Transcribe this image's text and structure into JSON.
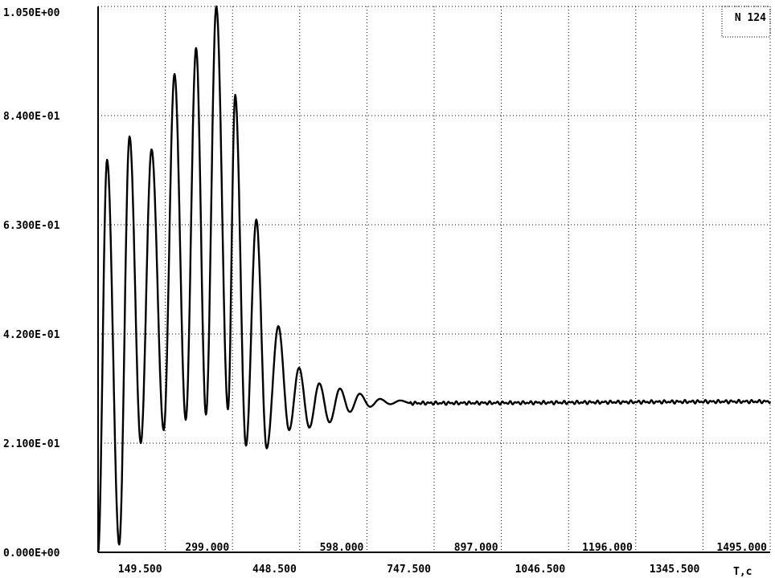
{
  "chart_data": {
    "type": "line",
    "title": "",
    "xlabel": "T,c",
    "ylabel": "",
    "badge": "N 124",
    "xlim": [
      0,
      1495
    ],
    "ylim": [
      0,
      1.05
    ],
    "grid": true,
    "y_ticks": [
      {
        "value": 0.0,
        "label": "0.000E+00"
      },
      {
        "value": 0.21,
        "label": "2.100E-01"
      },
      {
        "value": 0.42,
        "label": "4.200E-01"
      },
      {
        "value": 0.63,
        "label": "6.300E-01"
      },
      {
        "value": 0.84,
        "label": "8.400E-01"
      },
      {
        "value": 1.05,
        "label": "1.050E+00"
      }
    ],
    "x_ticks_upper": [
      {
        "value": 299.0,
        "label": "299.000"
      },
      {
        "value": 598.0,
        "label": "598.000"
      },
      {
        "value": 897.0,
        "label": "897.000"
      },
      {
        "value": 1196.0,
        "label": "1196.000"
      },
      {
        "value": 1495.0,
        "label": "1495.000"
      }
    ],
    "x_ticks_lower": [
      {
        "value": 149.5,
        "label": "149.500"
      },
      {
        "value": 448.5,
        "label": "448.500"
      },
      {
        "value": 747.5,
        "label": "747.500"
      },
      {
        "value": 1046.5,
        "label": "1046.500"
      },
      {
        "value": 1345.5,
        "label": "1345.500"
      }
    ],
    "series": [
      {
        "peaks": [
          [
            0,
            0.0
          ],
          [
            20,
            0.755
          ],
          [
            47,
            0.015
          ],
          [
            70,
            0.8
          ],
          [
            95,
            0.21
          ],
          [
            119,
            0.775
          ],
          [
            146,
            0.235
          ],
          [
            170,
            0.92
          ],
          [
            195,
            0.255
          ],
          [
            218,
            0.97
          ],
          [
            240,
            0.265
          ],
          [
            263,
            1.05
          ],
          [
            289,
            0.275
          ],
          [
            305,
            0.88
          ],
          [
            329,
            0.205
          ],
          [
            352,
            0.64
          ],
          [
            375,
            0.2
          ],
          [
            401,
            0.435
          ],
          [
            425,
            0.235
          ],
          [
            447,
            0.355
          ],
          [
            470,
            0.24
          ],
          [
            492,
            0.325
          ],
          [
            515,
            0.25
          ],
          [
            538,
            0.315
          ],
          [
            560,
            0.27
          ],
          [
            582,
            0.305
          ],
          [
            605,
            0.28
          ],
          [
            627,
            0.295
          ],
          [
            650,
            0.285
          ],
          [
            672,
            0.292
          ],
          [
            695,
            0.287
          ],
          [
            1495,
            0.29
          ]
        ],
        "steady_value": 0.29
      }
    ]
  }
}
